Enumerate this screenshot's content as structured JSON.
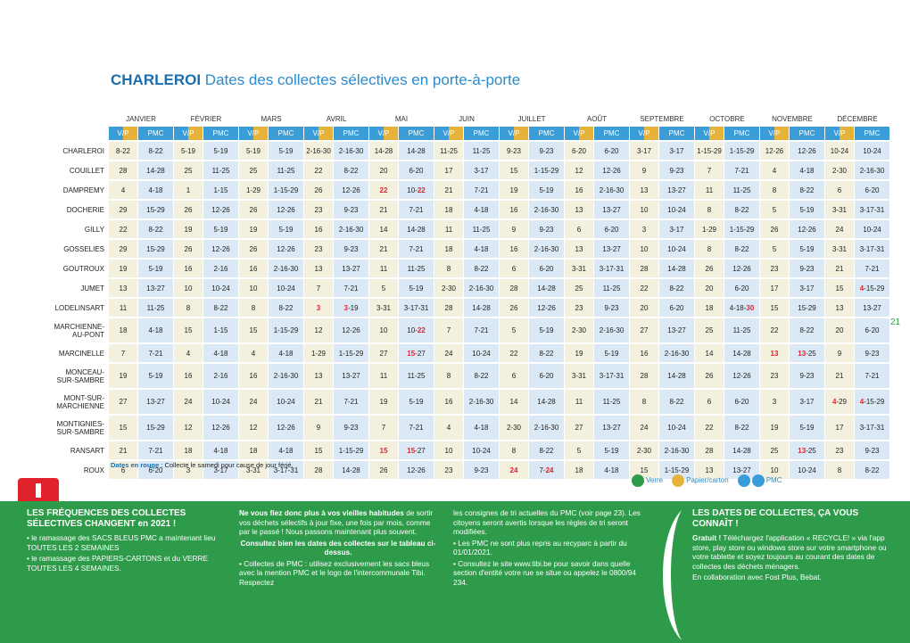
{
  "header": {
    "title": "CHARLEROI",
    "subtitle": "Dates des collectes sélectives en porte-à-porte"
  },
  "table": {
    "months": [
      "JANVIER",
      "FÉVRIER",
      "MARS",
      "AVRIL",
      "MAI",
      "JUIN",
      "JUILLET",
      "AOÛT",
      "SEPTEMBRE",
      "OCTOBRE",
      "NOVEMBRE",
      "DÉCEMBRE"
    ],
    "subheaders": [
      "V/P",
      "PMC"
    ],
    "rows": [
      {
        "name": "CHARLEROI",
        "cells": [
          "8-22",
          "8-22",
          "5-19",
          "5-19",
          "5-19",
          "5-19",
          "2-16-30",
          "2-16-30",
          "14-28",
          "14-28",
          "11-25",
          "11-25",
          "9-23",
          "9-23",
          "6-20",
          "6-20",
          "3-17",
          "3-17",
          "1-15-29",
          "1-15-29",
          "12-26",
          "12-26",
          "10-24",
          "10-24"
        ]
      },
      {
        "name": "COUILLET",
        "cells": [
          "28",
          "14-28",
          "25",
          "11-25",
          "25",
          "11-25",
          "22",
          "8-22",
          "20",
          "6-20",
          "17",
          "3-17",
          "15",
          "1-15-29",
          "12",
          "12-26",
          "9",
          "9-23",
          "7",
          "7-21",
          "4",
          "4-18",
          "2-30",
          "2-16-30"
        ]
      },
      {
        "name": "DAMPREMY",
        "cells": [
          "4",
          "4-18",
          "1",
          "1-15",
          "1-29",
          "1-15-29",
          "26",
          "12-26",
          [
            {
              "t": "22",
              "red": true
            }
          ],
          [
            {
              "t": "10-"
            },
            {
              "t": "22",
              "red": true
            }
          ],
          "21",
          "7-21",
          "19",
          "5-19",
          "16",
          "2-16-30",
          "13",
          "13-27",
          "11",
          "11-25",
          "8",
          "8-22",
          "6",
          "6-20"
        ]
      },
      {
        "name": "DOCHERIE",
        "cells": [
          "29",
          "15-29",
          "26",
          "12-26",
          "26",
          "12-26",
          "23",
          "9-23",
          "21",
          "7-21",
          "18",
          "4-18",
          "16",
          "2-16-30",
          "13",
          "13-27",
          "10",
          "10-24",
          "8",
          "8-22",
          "5",
          "5-19",
          "3-31",
          "3-17-31"
        ]
      },
      {
        "name": "GILLY",
        "cells": [
          "22",
          "8-22",
          "19",
          "5-19",
          "19",
          "5-19",
          "16",
          "2-16-30",
          "14",
          "14-28",
          "11",
          "11-25",
          "9",
          "9-23",
          "6",
          "6-20",
          "3",
          "3-17",
          "1-29",
          "1-15-29",
          "26",
          "12-26",
          "24",
          "10-24"
        ]
      },
      {
        "name": "GOSSELIES",
        "cells": [
          "29",
          "15-29",
          "26",
          "12-26",
          "26",
          "12-26",
          "23",
          "9-23",
          "21",
          "7-21",
          "18",
          "4-18",
          "16",
          "2-16-30",
          "13",
          "13-27",
          "10",
          "10-24",
          "8",
          "8-22",
          "5",
          "5-19",
          "3-31",
          "3-17-31"
        ]
      },
      {
        "name": "GOUTROUX",
        "cells": [
          "19",
          "5-19",
          "16",
          "2-16",
          "16",
          "2-16-30",
          "13",
          "13-27",
          "11",
          "11-25",
          "8",
          "8-22",
          "6",
          "6-20",
          "3-31",
          "3-17-31",
          "28",
          "14-28",
          "26",
          "12-26",
          "23",
          "9-23",
          "21",
          "7-21"
        ]
      },
      {
        "name": "JUMET",
        "cells": [
          "13",
          "13-27",
          "10",
          "10-24",
          "10",
          "10-24",
          "7",
          "7-21",
          "5",
          "5-19",
          "2-30",
          "2-16-30",
          "28",
          "14-28",
          "25",
          "11-25",
          "22",
          "8-22",
          "20",
          "6-20",
          "17",
          "3-17",
          "15",
          [
            {
              "t": "4",
              "red": true
            },
            {
              "t": "-15-29"
            }
          ]
        ]
      },
      {
        "name": "LODELINSART",
        "cells": [
          "11",
          "11-25",
          "8",
          "8-22",
          "8",
          "8-22",
          [
            {
              "t": "3",
              "red": true
            }
          ],
          [
            {
              "t": "3",
              "red": true
            },
            {
              "t": "-19"
            }
          ],
          "3-31",
          "3-17-31",
          "28",
          "14-28",
          "26",
          "12-26",
          "23",
          "9-23",
          "20",
          "6-20",
          "18",
          [
            {
              "t": "4-18-"
            },
            {
              "t": "30",
              "red": true
            }
          ],
          "15",
          "15-29",
          "13",
          "13-27"
        ]
      },
      {
        "name": "MARCHIENNE-\nAU-PONT",
        "cells": [
          "18",
          "4-18",
          "15",
          "1-15",
          "15",
          "1-15-29",
          "12",
          "12-26",
          "10",
          [
            {
              "t": "10-"
            },
            {
              "t": "22",
              "red": true
            }
          ],
          "7",
          "7-21",
          "5",
          "5-19",
          "2-30",
          "2-16-30",
          "27",
          "13-27",
          "25",
          "11-25",
          "22",
          "8-22",
          "20",
          "6-20"
        ]
      },
      {
        "name": "MARCINELLE",
        "cells": [
          "7",
          "7-21",
          "4",
          "4-18",
          "4",
          "4-18",
          "1-29",
          "1-15-29",
          "27",
          [
            {
              "t": "15",
              "red": true
            },
            {
              "t": "-27"
            }
          ],
          "24",
          "10-24",
          "22",
          "8-22",
          "19",
          "5-19",
          "16",
          "2-16-30",
          "14",
          "14-28",
          [
            {
              "t": "13",
              "red": true
            }
          ],
          [
            {
              "t": "13",
              "red": true
            },
            {
              "t": "-25"
            }
          ],
          "9",
          "9-23"
        ]
      },
      {
        "name": "MONCEAU-\nSUR-SAMBRE",
        "cells": [
          "19",
          "5-19",
          "16",
          "2-16",
          "16",
          "2-16-30",
          "13",
          "13-27",
          "11",
          "11-25",
          "8",
          "8-22",
          "6",
          "6-20",
          "3-31",
          "3-17-31",
          "28",
          "14-28",
          "26",
          "12-26",
          "23",
          "9-23",
          "21",
          "7-21"
        ]
      },
      {
        "name": "MONT-SUR-\nMARCHIENNE",
        "cells": [
          "27",
          "13-27",
          "24",
          "10-24",
          "24",
          "10-24",
          "21",
          "7-21",
          "19",
          "5-19",
          "16",
          "2-16-30",
          "14",
          "14-28",
          "11",
          "11-25",
          "8",
          "8-22",
          "6",
          "6-20",
          "3",
          "3-17",
          [
            {
              "t": "4",
              "red": true
            },
            {
              "t": "-29"
            }
          ],
          [
            {
              "t": "4",
              "red": true
            },
            {
              "t": "-15-29"
            }
          ]
        ]
      },
      {
        "name": "MONTIGNIES-\nSUR-SAMBRE",
        "cells": [
          "15",
          "15-29",
          "12",
          "12-26",
          "12",
          "12-26",
          "9",
          "9-23",
          "7",
          "7-21",
          "4",
          "4-18",
          "2-30",
          "2-16-30",
          "27",
          "13-27",
          "24",
          "10-24",
          "22",
          "8-22",
          "19",
          "5-19",
          "17",
          "3-17-31"
        ]
      },
      {
        "name": "RANSART",
        "cells": [
          "21",
          "7-21",
          "18",
          "4-18",
          "18",
          "4-18",
          "15",
          "1-15-29",
          [
            {
              "t": "15",
              "red": true
            }
          ],
          [
            {
              "t": "15",
              "red": true
            },
            {
              "t": "-27"
            }
          ],
          "10",
          "10-24",
          "8",
          "8-22",
          "5",
          "5-19",
          "2-30",
          "2-16-30",
          "28",
          "14-28",
          "25",
          [
            {
              "t": "13",
              "red": true
            },
            {
              "t": "-25"
            }
          ],
          "23",
          "9-23"
        ]
      },
      {
        "name": "ROUX",
        "cells": [
          "6",
          "6-20",
          "3",
          "3-17",
          "3-31",
          "3-17-31",
          "28",
          "14-28",
          "26",
          "12-26",
          "23",
          "9-23",
          [
            {
              "t": "24",
              "red": true
            }
          ],
          [
            {
              "t": "7-"
            },
            {
              "t": "24",
              "red": true
            }
          ],
          "18",
          "4-18",
          "15",
          "1-15-29",
          "13",
          "13-27",
          "10",
          "10-24",
          "8",
          "8-22"
        ]
      }
    ]
  },
  "note": {
    "label": "Dates en rouge",
    "text": ": Collecte le samedi pour cause de jour férié."
  },
  "legend": [
    "Verre",
    "Papier/carton",
    "PMC"
  ],
  "page_number": "21",
  "info": {
    "col1": {
      "title": "LES FRÉQUENCES DES COLLECTES SÉLECTIVES CHANGENT en 2021 !",
      "items": [
        "• le ramassage des SACS BLEUS PMC a maintenant lieu TOUTES LES 2 SEMAINES",
        "• le ramassage des PAPIERS-CARTONS et du VERRE TOUTES LES 4 SEMAINES."
      ]
    },
    "col2": {
      "intro": "Ne vous fiez donc plus à vos vieilles habitudes",
      "text": "de sortir vos déchets sélectifs à jour fixe, une fois par mois, comme par le passé ! Nous passons maintenant plus souvent.",
      "emphasis": "Consultez bien les dates des collectes sur le tableau ci-dessus.",
      "item": "• Collectes de PMC : utilisez exclusivement les sacs bleus avec la mention PMC et le logo de l'intercommunale Tibi. Respectez"
    },
    "col3": {
      "text": "les consignes de tri actuelles du PMC (voir page 23). Les citoyens seront avertis lorsque les règles de tri seront modifiées.",
      "items": [
        "• Les PMC ne sont plus repris au recyparc à partir du 01/01/2021.",
        "• Consultez le site www.tibi.be pour savoir dans quelle section d'entité votre rue se situe ou appelez le 0800/94 234."
      ]
    },
    "col4": {
      "title": "LES DATES DE COLLECTES, ÇA VOUS CONNAÎT !",
      "lead": "Gratuit !",
      "text": "Téléchargez l'application « RECYCLE! » via l'app store, play store ou windows store sur votre smartphone ou votre tablette et soyez toujours au courant des dates de collectes des déchets ménagers.",
      "credit": "En collaboration avec Fost Plus, Bebat."
    }
  }
}
